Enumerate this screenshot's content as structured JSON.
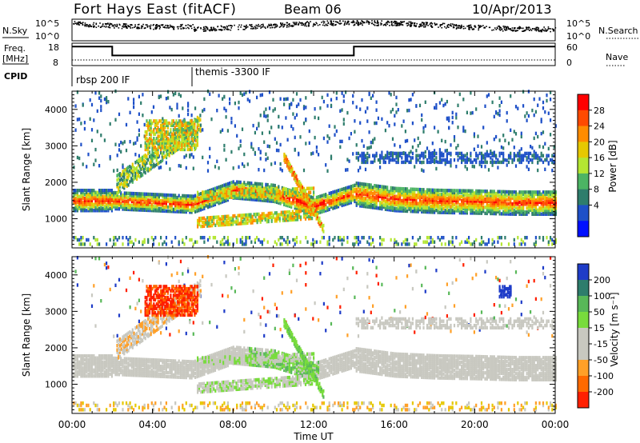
{
  "header": {
    "station": "Fort Hays East (fitACF)",
    "beam": "Beam 06",
    "date": "10/Apr/2013"
  },
  "top_panels": {
    "nsky_label": "N.Sky",
    "nsky_ticks": [
      "10^5",
      "10^0"
    ],
    "nsearch_label": "N.Search",
    "nsearch_ticks": [
      "10^5",
      "10^0"
    ],
    "freq_label_1": "Freq.",
    "freq_label_2": "[MHz]",
    "freq_ticks": [
      "18",
      "8"
    ],
    "nave_label": "Nave",
    "nave_ticks": [
      "60",
      "0"
    ],
    "cpid_label": "CPID",
    "cpid_segments": [
      {
        "label": "rbsp 200 IF",
        "start_hour": 0
      },
      {
        "label": "themis -3300 IF",
        "start_hour": 6
      }
    ],
    "freq_series": {
      "hours": [
        0,
        2,
        2,
        14,
        14,
        24
      ],
      "mhz": [
        16.5,
        16.5,
        12.5,
        12.5,
        16.5,
        16.5
      ]
    },
    "nave_series": {
      "hours": [
        0,
        24
      ],
      "values": [
        15,
        15
      ]
    }
  },
  "chart_data": [
    {
      "type": "heatmap",
      "name": "power",
      "ylabel": "Slant Range [km]",
      "yticks": [
        1000,
        2000,
        3000,
        4000
      ],
      "ylim": [
        200,
        4500
      ],
      "xlim": [
        0,
        24
      ],
      "colorbar_label": "Power [dB]",
      "colorbar_ticks": [
        "28",
        "24",
        "20",
        "16",
        "12",
        "8",
        "4"
      ],
      "colorbar_colors": [
        "#ff0000",
        "#ff4a00",
        "#ff8c00",
        "#e6c800",
        "#b4e632",
        "#4cb464",
        "#2e7d6c",
        "#1e50c8",
        "#0010ff"
      ],
      "features": [
        {
          "desc": "main band",
          "hours": [
            0,
            2,
            4,
            6,
            8,
            10,
            12,
            14,
            16,
            18,
            20,
            22,
            24
          ],
          "range_km": [
            1500,
            1500,
            1450,
            1400,
            1800,
            1700,
            1350,
            1700,
            1550,
            1500,
            1480,
            1450,
            1450
          ]
        }
      ]
    },
    {
      "type": "heatmap",
      "name": "velocity",
      "ylabel": "Slant Range [km]",
      "yticks": [
        1000,
        2000,
        3000,
        4000
      ],
      "ylim": [
        200,
        4500
      ],
      "xlim": [
        0,
        24
      ],
      "colorbar_label": "Velocity [m s⁻¹]",
      "colorbar_ticks": [
        "200",
        "100",
        "50",
        "15",
        "-15",
        "-50",
        "-100",
        "-200"
      ],
      "colorbar_colors": [
        "#1e3cc8",
        "#2e7d6c",
        "#58b858",
        "#78dc3c",
        "#c8c8c0",
        "#c8c8c0",
        "#ffa028",
        "#ff6a00",
        "#ff2000"
      ]
    }
  ],
  "xaxis": {
    "ticks": [
      "00:00",
      "04:00",
      "08:00",
      "12:00",
      "16:00",
      "20:00",
      "00:00"
    ],
    "tick_hours": [
      0,
      4,
      8,
      12,
      16,
      20,
      24
    ],
    "label": "Time UT"
  }
}
